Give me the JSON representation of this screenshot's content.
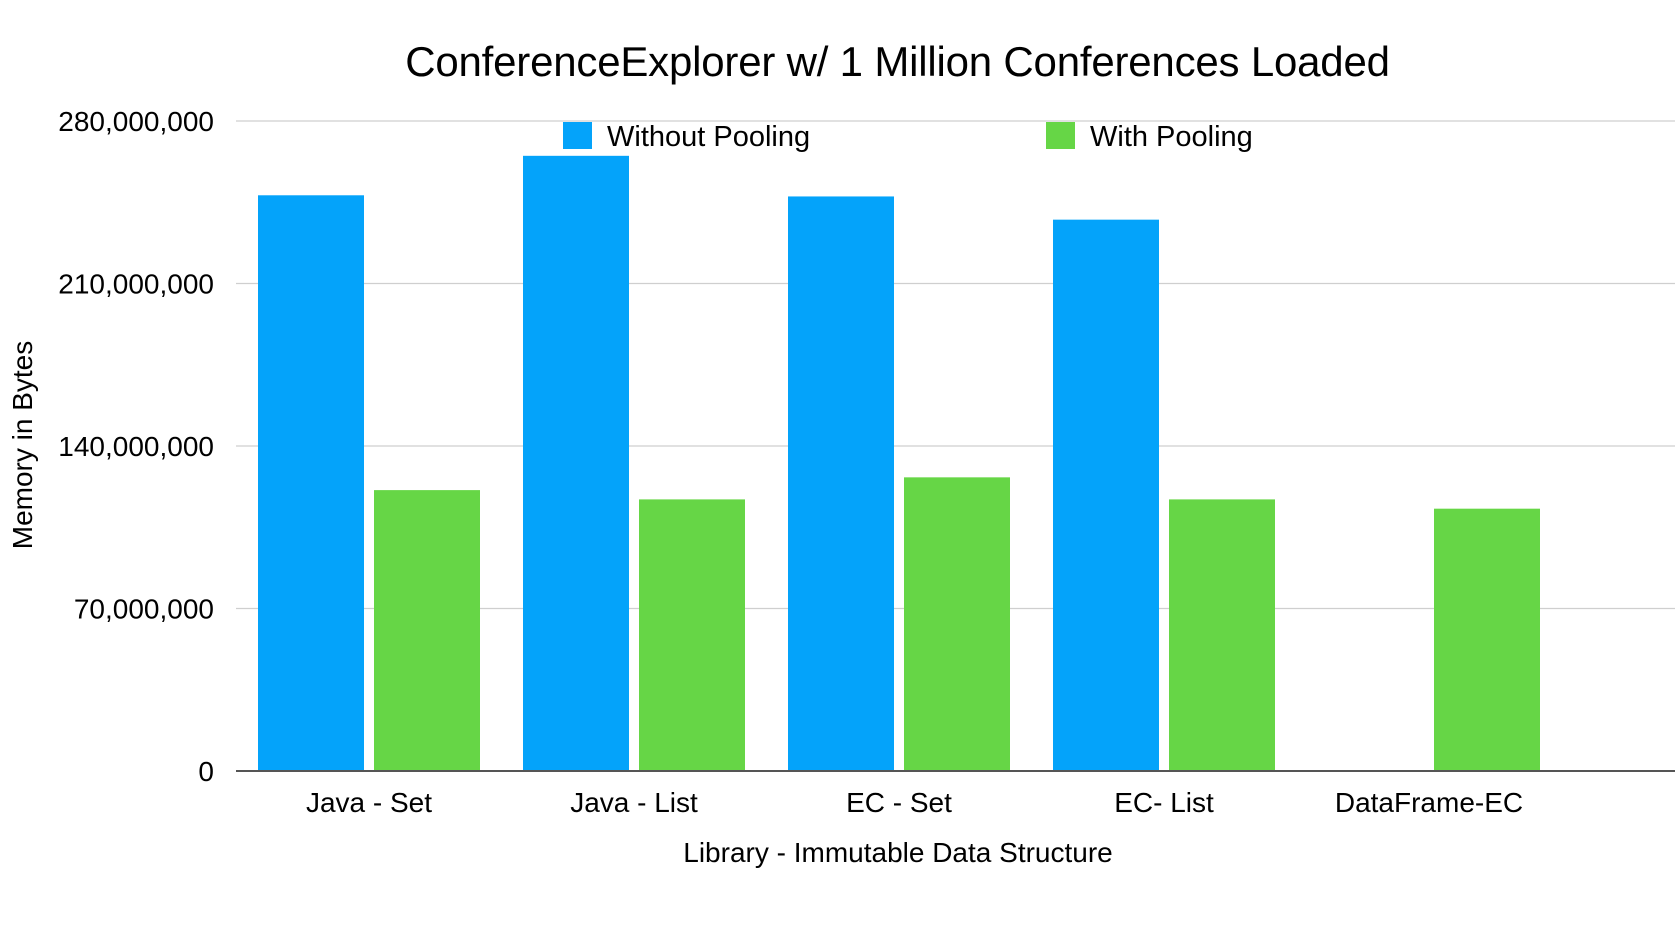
{
  "chart_data": {
    "type": "bar",
    "title": "ConferenceExplorer w/ 1 Million Conferences Loaded",
    "xlabel": "Library - Immutable Data Structure",
    "ylabel": "Memory in Bytes",
    "categories": [
      "Java - Set",
      "Java - List",
      "EC - Set",
      "EC- List",
      "DataFrame-EC"
    ],
    "series": [
      {
        "name": "Without Pooling",
        "color": "#04A3FA",
        "values": [
          248000000,
          265000000,
          247500000,
          237500000,
          0
        ]
      },
      {
        "name": "With Pooling",
        "color": "#66D646",
        "values": [
          121000000,
          117000000,
          126500000,
          117000000,
          113000000
        ]
      }
    ],
    "ylim": [
      0,
      280000000
    ],
    "yticks": [
      0,
      70000000,
      140000000,
      210000000,
      280000000
    ],
    "ytick_labels": [
      "0",
      "70,000,000",
      "140,000,000",
      "210,000,000",
      "280,000,000"
    ],
    "grid": true,
    "legend_position": "top"
  }
}
